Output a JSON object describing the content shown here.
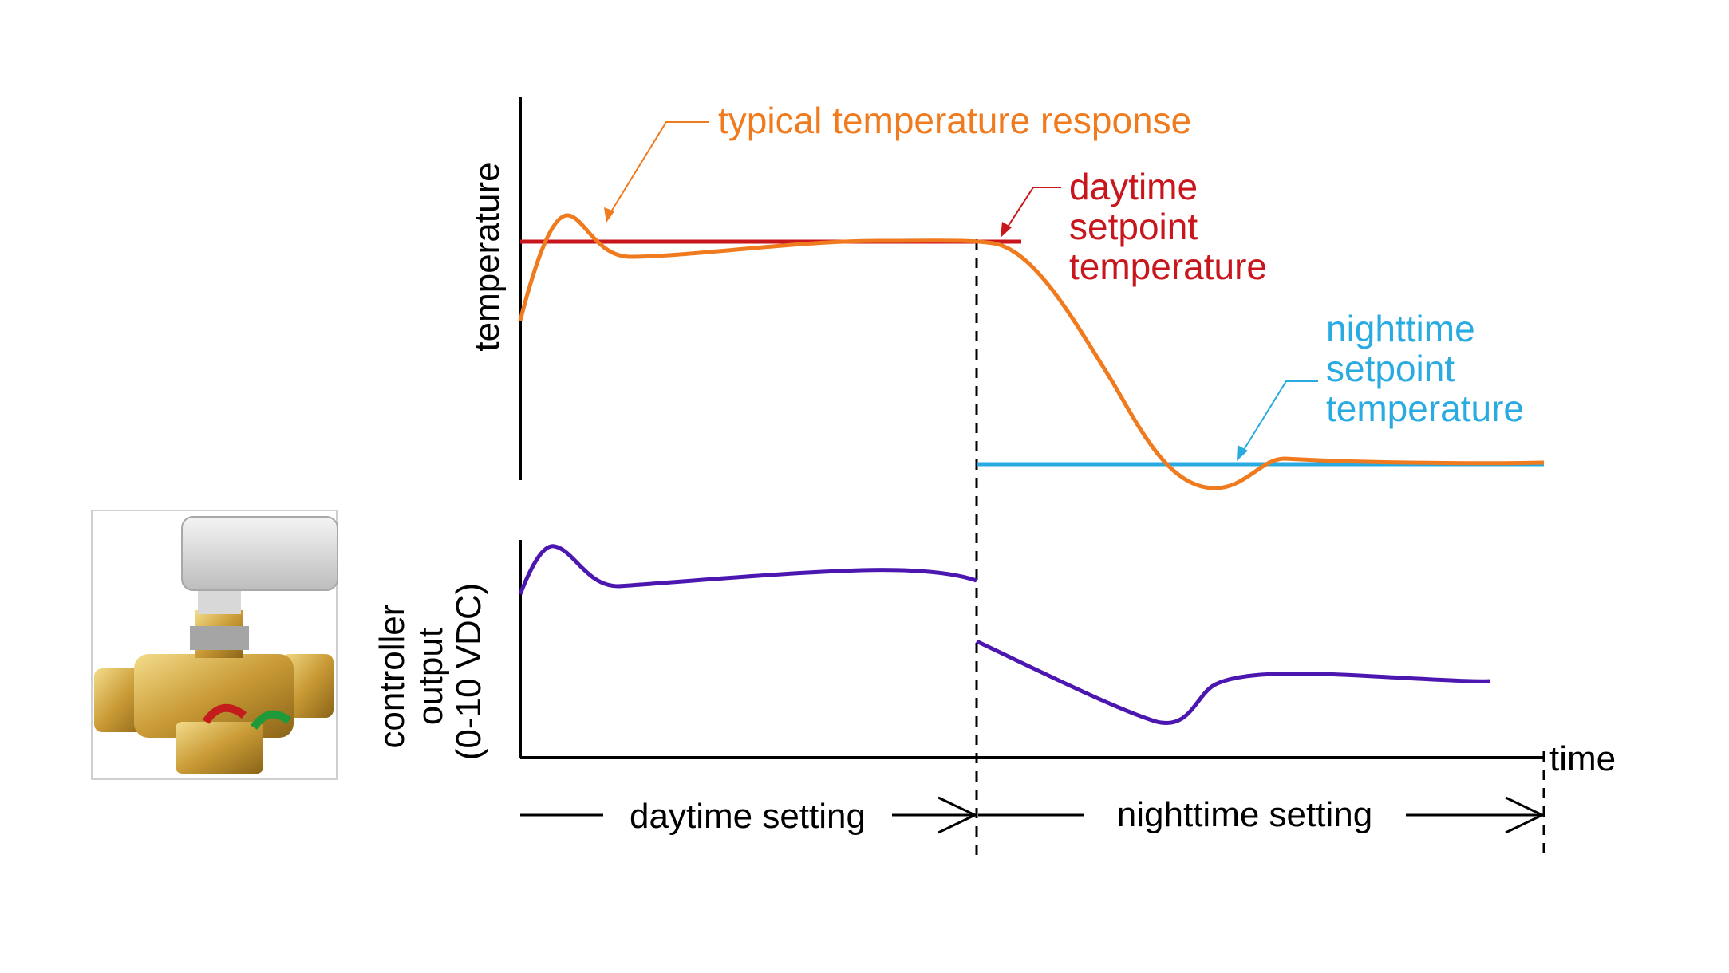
{
  "colors": {
    "temperature_response": "#F07A1E",
    "daytime_setpoint": "#C8161D",
    "nighttime_setpoint": "#29ABE2",
    "controller_output": "#4B17B0",
    "axes": "#000000"
  },
  "labels": {
    "temperature_response": "typical temperature response",
    "daytime_setpoint": [
      "daytime",
      "setpoint",
      "temperature"
    ],
    "nighttime_setpoint": [
      "nighttime",
      "setpoint",
      "temperature"
    ],
    "temperature_axis": "temperature",
    "controller_axis": [
      "controller",
      "output",
      "(0-10 VDC)"
    ],
    "time_axis": "time",
    "daytime_setting": "daytime setting",
    "nighttime_setting": "nighttime setting"
  },
  "illustration": {
    "icon": "zone-valve-with-actuator-icon"
  }
}
